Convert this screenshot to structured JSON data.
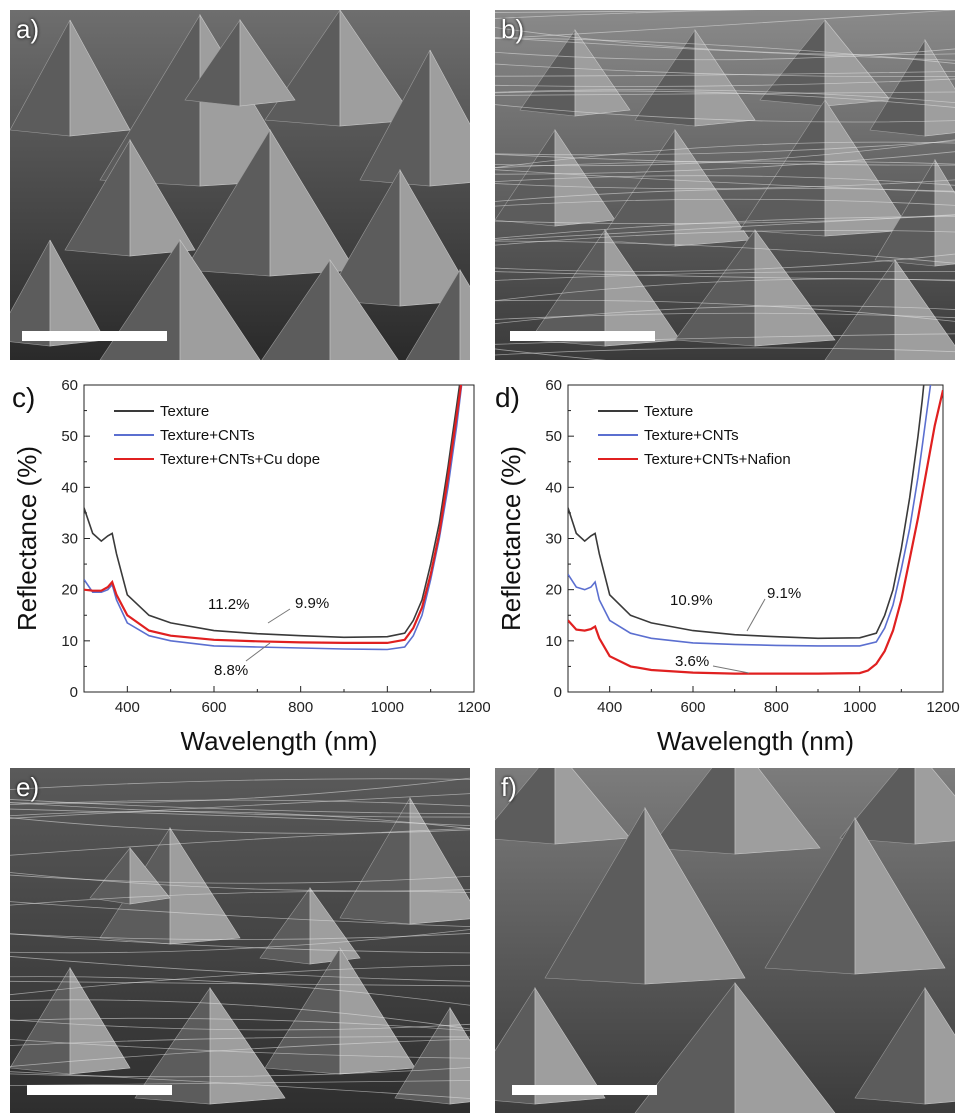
{
  "panels": {
    "a": {
      "label": "a)"
    },
    "b": {
      "label": "b)"
    },
    "e": {
      "label": "e)"
    },
    "f": {
      "label": "f)"
    }
  },
  "chart_data": [
    {
      "panel_label": "c)",
      "type": "line",
      "xlabel": "Wavelength (nm)",
      "ylabel": "Reflectance (%)",
      "xlim": [
        300,
        1200
      ],
      "ylim": [
        0,
        60
      ],
      "xticks": [
        400,
        600,
        800,
        1000,
        1200
      ],
      "yticks": [
        0,
        10,
        20,
        30,
        40,
        50,
        60
      ],
      "grid": false,
      "legend_position": "top-left",
      "series": [
        {
          "name": "Texture",
          "color": "#3a3a3a",
          "x": [
            300,
            320,
            340,
            355,
            365,
            375,
            400,
            450,
            500,
            600,
            700,
            800,
            900,
            1000,
            1040,
            1060,
            1080,
            1100,
            1120,
            1140,
            1150,
            1160,
            1170,
            1180
          ],
          "y": [
            36,
            31,
            29.5,
            30.5,
            31,
            27,
            19,
            15,
            13.5,
            12,
            11.4,
            11,
            10.7,
            10.8,
            11.5,
            14,
            18,
            25,
            33,
            44,
            50,
            56,
            62,
            70
          ]
        },
        {
          "name": "Texture+CNTs",
          "color": "#5b6fd0",
          "x": [
            300,
            320,
            340,
            355,
            365,
            375,
            400,
            450,
            500,
            600,
            700,
            800,
            900,
            1000,
            1040,
            1060,
            1080,
            1100,
            1120,
            1140,
            1150,
            1160,
            1170,
            1180
          ],
          "y": [
            22,
            19.5,
            19.5,
            20,
            21,
            18,
            13.5,
            11,
            10,
            9,
            8.8,
            8.6,
            8.4,
            8.3,
            8.8,
            11,
            15,
            22,
            30,
            40,
            46,
            52,
            59,
            66
          ]
        },
        {
          "name": "Texture+CNTs+Cu dope",
          "color": "#e02020",
          "x": [
            300,
            320,
            340,
            355,
            365,
            375,
            400,
            450,
            500,
            600,
            700,
            800,
            900,
            1000,
            1040,
            1060,
            1080,
            1100,
            1120,
            1140,
            1150,
            1160,
            1170,
            1180
          ],
          "y": [
            20,
            19.8,
            19.8,
            20.5,
            21.5,
            19,
            15,
            12,
            11,
            10.2,
            9.9,
            9.7,
            9.6,
            9.6,
            10.2,
            12.5,
            16.5,
            23,
            31,
            42,
            48,
            54,
            60,
            68
          ]
        }
      ],
      "annotations": [
        "11.2%",
        "9.9%",
        "8.8%"
      ]
    },
    {
      "panel_label": "d)",
      "type": "line",
      "xlabel": "Wavelength (nm)",
      "ylabel": "Reflectance (%)",
      "xlim": [
        300,
        1200
      ],
      "ylim": [
        0,
        60
      ],
      "xticks": [
        400,
        600,
        800,
        1000,
        1200
      ],
      "yticks": [
        0,
        10,
        20,
        30,
        40,
        50,
        60
      ],
      "grid": false,
      "legend_position": "top-left",
      "series": [
        {
          "name": "Texture",
          "color": "#3a3a3a",
          "x": [
            300,
            320,
            340,
            355,
            365,
            375,
            400,
            450,
            500,
            600,
            700,
            800,
            900,
            1000,
            1040,
            1060,
            1080,
            1100,
            1120,
            1140,
            1150,
            1160,
            1170
          ],
          "y": [
            36,
            31,
            29.5,
            30.5,
            31,
            27,
            19,
            15,
            13.5,
            12,
            11.2,
            10.8,
            10.5,
            10.6,
            11.5,
            15,
            20,
            28,
            38,
            50,
            57,
            65,
            72
          ]
        },
        {
          "name": "Texture+CNTs",
          "color": "#5b6fd0",
          "x": [
            300,
            320,
            340,
            355,
            365,
            375,
            400,
            450,
            500,
            600,
            700,
            800,
            900,
            1000,
            1040,
            1060,
            1080,
            1100,
            1120,
            1140,
            1150,
            1160,
            1170,
            1180
          ],
          "y": [
            23,
            20.5,
            20,
            20.5,
            21.5,
            18,
            14,
            11.5,
            10.5,
            9.6,
            9.3,
            9.1,
            9.0,
            9.0,
            9.8,
            12.5,
            17,
            24,
            32,
            42,
            48,
            54,
            60,
            66
          ]
        },
        {
          "name": "Texture+CNTs+Nafion",
          "color": "#e02020",
          "x": [
            300,
            320,
            340,
            355,
            365,
            375,
            400,
            450,
            500,
            600,
            700,
            800,
            900,
            1000,
            1020,
            1040,
            1060,
            1080,
            1100,
            1120,
            1140,
            1160,
            1180,
            1200
          ],
          "y": [
            14,
            12.2,
            12,
            12.3,
            12.8,
            10.5,
            7,
            5,
            4.3,
            3.8,
            3.6,
            3.6,
            3.6,
            3.7,
            4.2,
            5.5,
            8,
            12,
            18,
            26,
            34,
            43,
            52,
            59
          ]
        }
      ],
      "annotations": [
        "10.9%",
        "9.1%",
        "3.6%"
      ]
    }
  ]
}
